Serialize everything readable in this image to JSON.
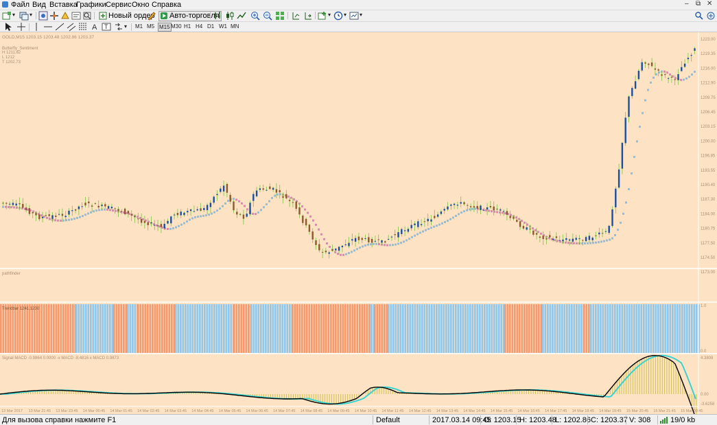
{
  "menu": [
    "Файл",
    "Вид",
    "Вставка",
    "Графики",
    "Сервис",
    "Окно",
    "Справка"
  ],
  "toolbar": {
    "new_order_label": "Новый ордер",
    "autotrading_label": "Авто-торговля"
  },
  "timeframes": [
    "M1",
    "M5",
    "M15",
    "M30",
    "H1",
    "H4",
    "D1",
    "W1",
    "MN"
  ],
  "chart": {
    "header": "GOLD,M15  1203.15 1203.48 1202.86 1203.37",
    "indicator_lines": [
      "Butterfly_Sentiment",
      "H 1211.62",
      "L 1212",
      "T 1202.73"
    ],
    "sub1_label": "pathfinder",
    "sub2_label": "Trendbar 1241.1230",
    "sub3_label": "Signal MACD -0.9864 0.0000   -x MACD -8.4816   x MACD 0.9873",
    "price_axis": [
      "1223.00",
      "1219.35",
      "1216.00",
      "1212.90",
      "1209.75",
      "1206.45",
      "1203.15",
      "1200.00",
      "1196.85",
      "1193.55",
      "1190.40",
      "1187.30",
      "1184.00",
      "1180.75",
      "1177.50",
      "1174.50",
      "1173.00"
    ],
    "sub2_scale": [
      "1.0",
      "0.0"
    ],
    "sub3_scale": [
      "4.3808",
      "0.00",
      "-3.6258"
    ],
    "time_axis": [
      "13 Mar 2017",
      "13 Mar 21:45",
      "13 Mar 23:45",
      "14 Mar 00:45",
      "14 Mar 01:45",
      "14 Mar 02:45",
      "14 Mar 03:45",
      "14 Mar 04:45",
      "14 Mar 05:45",
      "14 Mar 06:45",
      "14 Mar 07:45",
      "14 Mar 08:45",
      "14 Mar 09:45",
      "14 Mar 10:45",
      "14 Mar 11:45",
      "14 Mar 12:45",
      "14 Mar 13:45",
      "14 Mar 14:45",
      "14 Mar 15:45",
      "14 Mar 16:45",
      "14 Mar 17:45",
      "14 Mar 18:45",
      "14 Mar 19:45",
      "15 Mar 20:45",
      "15 Mar 21:45",
      "15 Mar 00:45"
    ]
  },
  "colors": {
    "chart_bg": "#fde2c4",
    "bull": "#1a4fa0",
    "bear": "#8a5a2a",
    "wick": "#7ac142",
    "ma_up": "#85c1ea",
    "ma_down": "#e880c0",
    "bar_blue": "#8fc8ef",
    "bar_orange": "#f59a6e",
    "macd_line": "#000000",
    "signal_line": "#3ad3d0",
    "hist": "#c8c040"
  },
  "status": {
    "help": "Для вызова справки нажмите F1",
    "profile": "Default",
    "datetime": "2017.03.14 09:45",
    "open": "O: 1203.15",
    "high": "H: 1203.48",
    "low": "L: 1202.86",
    "close": "C: 1203.37",
    "volume": "V: 308",
    "traffic": "19/0 kb"
  }
}
